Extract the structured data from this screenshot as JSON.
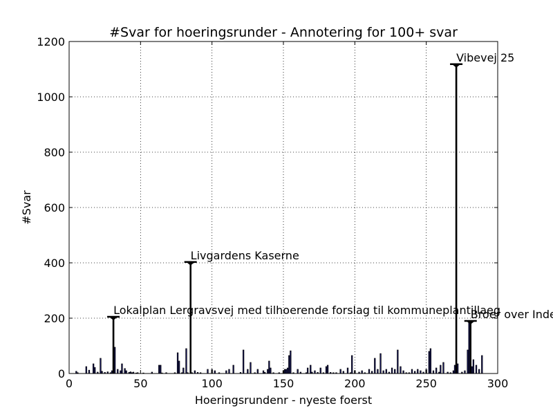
{
  "chart_data": {
    "type": "bar",
    "title": "#Svar for hoeringsrunder - Annotering for 100+ svar",
    "xlabel": "Hoeringsrundenr - nyeste foerst",
    "ylabel": "#Svar",
    "xlim": [
      0,
      300
    ],
    "ylim": [
      0,
      1200
    ],
    "xticks": [
      0,
      50,
      100,
      150,
      200,
      250,
      300
    ],
    "yticks": [
      0,
      200,
      400,
      600,
      800,
      1000,
      1200
    ],
    "grid": true,
    "bar_color": "#1a1a66",
    "x": [
      5,
      6,
      12,
      14,
      17,
      18,
      20,
      22,
      23,
      25,
      27,
      29,
      30,
      31,
      32,
      34,
      36,
      37,
      39,
      40,
      42,
      43,
      44,
      45,
      47,
      48,
      52,
      58,
      63,
      64,
      65,
      68,
      74,
      76,
      77,
      79,
      80,
      82,
      83,
      85,
      86,
      88,
      90,
      92,
      97,
      100,
      102,
      105,
      110,
      112,
      115,
      120,
      122,
      125,
      127,
      130,
      132,
      136,
      137,
      139,
      140,
      141,
      143,
      147,
      150,
      151,
      152,
      153,
      154,
      155,
      157,
      160,
      162,
      166,
      167,
      169,
      170,
      172,
      174,
      176,
      178,
      180,
      181,
      183,
      185,
      187,
      190,
      192,
      195,
      197,
      198,
      200,
      203,
      205,
      207,
      210,
      212,
      214,
      216,
      218,
      220,
      222,
      224,
      226,
      228,
      230,
      232,
      234,
      236,
      238,
      240,
      242,
      244,
      246,
      248,
      250,
      252,
      253,
      255,
      257,
      259,
      260,
      262,
      265,
      267,
      269,
      270,
      271,
      272,
      275,
      277,
      279,
      280,
      281,
      282,
      283,
      285,
      287,
      289
    ],
    "values": [
      8,
      3,
      25,
      12,
      35,
      22,
      5,
      55,
      8,
      4,
      6,
      3,
      10,
      205,
      95,
      15,
      10,
      35,
      18,
      10,
      4,
      6,
      3,
      5,
      2,
      3,
      2,
      5,
      30,
      30,
      2,
      3,
      3,
      75,
      45,
      3,
      20,
      90,
      3,
      403,
      3,
      10,
      4,
      3,
      15,
      15,
      10,
      3,
      10,
      15,
      30,
      4,
      85,
      15,
      40,
      3,
      15,
      10,
      4,
      15,
      45,
      20,
      3,
      3,
      10,
      15,
      15,
      20,
      65,
      82,
      3,
      15,
      5,
      3,
      20,
      30,
      5,
      10,
      4,
      20,
      3,
      25,
      30,
      4,
      3,
      3,
      15,
      8,
      20,
      3,
      65,
      10,
      5,
      10,
      3,
      15,
      8,
      55,
      15,
      72,
      10,
      15,
      5,
      20,
      15,
      85,
      25,
      10,
      3,
      3,
      15,
      8,
      15,
      10,
      5,
      15,
      80,
      90,
      10,
      20,
      5,
      30,
      40,
      5,
      3,
      10,
      30,
      1118,
      35,
      5,
      10,
      85,
      190,
      15,
      25,
      50,
      30,
      15,
      65
    ],
    "annotations": [
      {
        "x": 31,
        "y": 205,
        "label": "Lokalplan Lergravsvej med tilhoerende forslag til kommuneplantillaeg"
      },
      {
        "x": 85,
        "y": 403,
        "label": "Livgardens Kaserne"
      },
      {
        "x": 271,
        "y": 1118,
        "label": "Vibevej 25"
      },
      {
        "x": 281,
        "y": 190,
        "label": "Broer over Inderhavnen"
      }
    ]
  }
}
